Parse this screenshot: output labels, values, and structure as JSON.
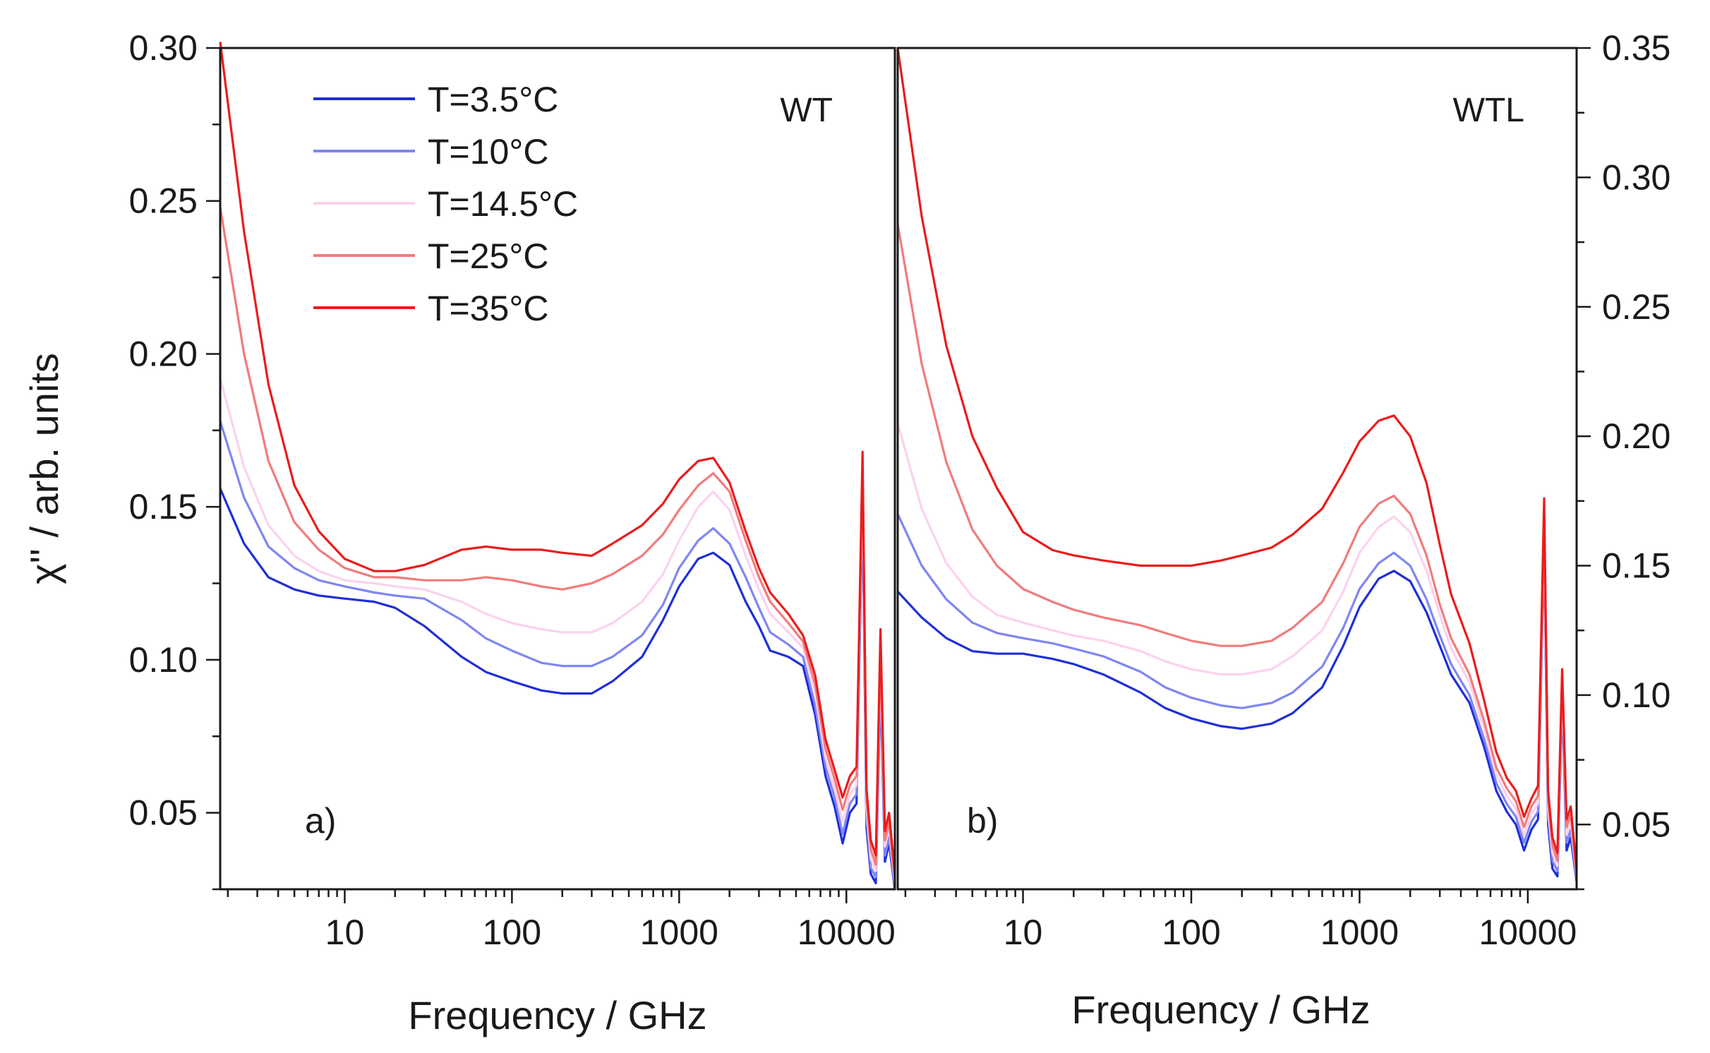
{
  "chart_data": [
    {
      "panel": "a",
      "type": "line",
      "x_scale": "log",
      "title": "",
      "sample_label": "WT",
      "panel_letter": "a)",
      "xlabel": "Frequency / GHz",
      "ylabel": "χ'' / arb. units",
      "xlim": [
        1.8,
        19500
      ],
      "ylim": [
        0.025,
        0.3
      ],
      "x_ticks": [
        10,
        100,
        1000,
        10000
      ],
      "x_tick_labels": [
        "10",
        "100",
        "1000",
        "10000"
      ],
      "y_ticks": [
        0.05,
        0.1,
        0.15,
        0.2,
        0.25,
        0.3
      ],
      "y_tick_labels": [
        "0.05",
        "0.10",
        "0.15",
        "0.20",
        "0.25",
        "0.30"
      ],
      "y_axis_side": "left",
      "legend": "top-left",
      "grid": false,
      "series": [
        {
          "name": "T=3.5°C",
          "color": "#1e2fd8",
          "x": [
            1.8,
            2.5,
            3.5,
            5,
            7,
            10,
            15,
            20,
            30,
            50,
            70,
            100,
            150,
            200,
            300,
            400,
            600,
            800,
            1000,
            1300,
            1600,
            2000,
            2500,
            3000,
            3500,
            4500,
            5500,
            6500,
            7500,
            8500,
            9500,
            10500,
            11500,
            12500,
            13200,
            14000,
            15000,
            16000,
            17000,
            18000,
            19500
          ],
          "y": [
            0.156,
            0.138,
            0.127,
            0.123,
            0.121,
            0.12,
            0.119,
            0.117,
            0.111,
            0.101,
            0.096,
            0.093,
            0.09,
            0.089,
            0.089,
            0.093,
            0.101,
            0.113,
            0.124,
            0.133,
            0.135,
            0.131,
            0.119,
            0.111,
            0.103,
            0.101,
            0.098,
            0.082,
            0.062,
            0.052,
            0.04,
            0.05,
            0.053,
            0.152,
            0.045,
            0.03,
            0.027,
            0.092,
            0.034,
            0.04,
            0.025
          ]
        },
        {
          "name": "T=10°C",
          "color": "#7f86f2",
          "x": [
            1.8,
            2.5,
            3.5,
            5,
            7,
            10,
            15,
            20,
            30,
            50,
            70,
            100,
            150,
            200,
            300,
            400,
            600,
            800,
            1000,
            1300,
            1600,
            2000,
            2500,
            3000,
            3500,
            4500,
            5500,
            6500,
            7500,
            8500,
            9500,
            10500,
            11500,
            12500,
            13200,
            14000,
            15000,
            16000,
            17000,
            18000,
            19500
          ],
          "y": [
            0.178,
            0.153,
            0.137,
            0.13,
            0.126,
            0.124,
            0.122,
            0.121,
            0.12,
            0.113,
            0.107,
            0.103,
            0.099,
            0.098,
            0.098,
            0.101,
            0.108,
            0.118,
            0.13,
            0.139,
            0.143,
            0.138,
            0.127,
            0.117,
            0.109,
            0.105,
            0.101,
            0.085,
            0.065,
            0.055,
            0.043,
            0.053,
            0.056,
            0.156,
            0.048,
            0.032,
            0.029,
            0.096,
            0.036,
            0.042,
            0.026
          ]
        },
        {
          "name": "T=14.5°C",
          "color": "#fbd2ee",
          "x": [
            1.8,
            2.5,
            3.5,
            5,
            7,
            10,
            15,
            20,
            30,
            50,
            70,
            100,
            150,
            200,
            300,
            400,
            600,
            800,
            1000,
            1300,
            1600,
            2000,
            2500,
            3000,
            3500,
            4500,
            5500,
            6500,
            7500,
            8500,
            9500,
            10500,
            11500,
            12500,
            13200,
            14000,
            15000,
            16000,
            17000,
            18000,
            19500
          ],
          "y": [
            0.192,
            0.163,
            0.144,
            0.134,
            0.129,
            0.126,
            0.125,
            0.124,
            0.123,
            0.119,
            0.115,
            0.112,
            0.11,
            0.109,
            0.109,
            0.112,
            0.119,
            0.128,
            0.139,
            0.15,
            0.155,
            0.149,
            0.134,
            0.123,
            0.115,
            0.109,
            0.104,
            0.089,
            0.068,
            0.058,
            0.047,
            0.056,
            0.059,
            0.16,
            0.052,
            0.035,
            0.031,
            0.1,
            0.039,
            0.045,
            0.027
          ]
        },
        {
          "name": "T=25°C",
          "color": "#f27b7b",
          "x": [
            1.8,
            2.5,
            3.5,
            5,
            7,
            10,
            15,
            20,
            30,
            50,
            70,
            100,
            150,
            200,
            300,
            400,
            600,
            800,
            1000,
            1300,
            1600,
            2000,
            2500,
            3000,
            3500,
            4500,
            5500,
            6500,
            7500,
            8500,
            9500,
            10500,
            11500,
            12500,
            13200,
            14000,
            15000,
            16000,
            17000,
            18000,
            19500
          ],
          "y": [
            0.248,
            0.2,
            0.165,
            0.145,
            0.136,
            0.13,
            0.127,
            0.127,
            0.126,
            0.126,
            0.127,
            0.126,
            0.124,
            0.123,
            0.125,
            0.128,
            0.134,
            0.141,
            0.149,
            0.157,
            0.161,
            0.155,
            0.139,
            0.127,
            0.119,
            0.112,
            0.106,
            0.092,
            0.071,
            0.061,
            0.051,
            0.059,
            0.062,
            0.164,
            0.055,
            0.038,
            0.033,
            0.104,
            0.041,
            0.047,
            0.028
          ]
        },
        {
          "name": "T=35°C",
          "color": "#ea1c1c",
          "x": [
            1.8,
            2.5,
            3.5,
            5,
            7,
            10,
            15,
            20,
            30,
            50,
            70,
            100,
            150,
            200,
            300,
            400,
            600,
            800,
            1000,
            1300,
            1600,
            2000,
            2500,
            3000,
            3500,
            4500,
            5500,
            6500,
            7500,
            8500,
            9500,
            10500,
            11500,
            12500,
            13200,
            14000,
            15000,
            16000,
            17000,
            18000,
            19500
          ],
          "y": [
            0.302,
            0.24,
            0.19,
            0.157,
            0.142,
            0.133,
            0.129,
            0.129,
            0.131,
            0.136,
            0.137,
            0.136,
            0.136,
            0.135,
            0.134,
            0.138,
            0.144,
            0.151,
            0.159,
            0.165,
            0.166,
            0.158,
            0.142,
            0.13,
            0.122,
            0.115,
            0.108,
            0.095,
            0.074,
            0.064,
            0.055,
            0.062,
            0.065,
            0.168,
            0.058,
            0.041,
            0.036,
            0.11,
            0.044,
            0.05,
            0.03
          ]
        }
      ]
    },
    {
      "panel": "b",
      "type": "line",
      "x_scale": "log",
      "title": "",
      "sample_label": "WTL",
      "panel_letter": "b)",
      "xlabel": "Frequency / GHz",
      "ylabel": "",
      "xlim": [
        1.8,
        19500
      ],
      "ylim": [
        0.025,
        0.35
      ],
      "x_ticks": [
        10,
        100,
        1000,
        10000
      ],
      "x_tick_labels": [
        "10",
        "100",
        "1000",
        "10000"
      ],
      "y_ticks": [
        0.05,
        0.1,
        0.15,
        0.2,
        0.25,
        0.3,
        0.35
      ],
      "y_tick_labels": [
        "0.05",
        "0.10",
        "0.15",
        "0.20",
        "0.25",
        "0.30",
        "0.35"
      ],
      "y_axis_side": "right",
      "grid": false,
      "series": [
        {
          "name": "T=3.5°C",
          "color": "#1e2fd8",
          "x": [
            1.8,
            2.5,
            3.5,
            5,
            7,
            10,
            15,
            20,
            30,
            50,
            70,
            100,
            150,
            200,
            300,
            400,
            600,
            800,
            1000,
            1300,
            1600,
            2000,
            2500,
            3000,
            3500,
            4500,
            5500,
            6500,
            7500,
            8500,
            9500,
            10500,
            11500,
            12500,
            13200,
            14000,
            15000,
            16000,
            17000,
            18000,
            19500
          ],
          "y": [
            0.14,
            0.13,
            0.122,
            0.117,
            0.116,
            0.116,
            0.114,
            0.112,
            0.108,
            0.101,
            0.095,
            0.091,
            0.088,
            0.087,
            0.089,
            0.093,
            0.103,
            0.119,
            0.134,
            0.145,
            0.148,
            0.144,
            0.132,
            0.119,
            0.108,
            0.097,
            0.08,
            0.063,
            0.055,
            0.05,
            0.04,
            0.048,
            0.052,
            0.16,
            0.05,
            0.033,
            0.03,
            0.098,
            0.04,
            0.045,
            0.028
          ]
        },
        {
          "name": "T=10°C",
          "color": "#7f86f2",
          "x": [
            1.8,
            2.5,
            3.5,
            5,
            7,
            10,
            15,
            20,
            30,
            50,
            70,
            100,
            150,
            200,
            300,
            400,
            600,
            800,
            1000,
            1300,
            1600,
            2000,
            2500,
            3000,
            3500,
            4500,
            5500,
            6500,
            7500,
            8500,
            9500,
            10500,
            11500,
            12500,
            13200,
            14000,
            15000,
            16000,
            17000,
            18000,
            19500
          ],
          "y": [
            0.17,
            0.15,
            0.137,
            0.128,
            0.124,
            0.122,
            0.12,
            0.118,
            0.115,
            0.109,
            0.103,
            0.099,
            0.096,
            0.095,
            0.097,
            0.101,
            0.111,
            0.126,
            0.141,
            0.151,
            0.155,
            0.15,
            0.137,
            0.123,
            0.112,
            0.1,
            0.083,
            0.066,
            0.058,
            0.053,
            0.043,
            0.051,
            0.055,
            0.163,
            0.053,
            0.036,
            0.032,
            0.101,
            0.043,
            0.048,
            0.029
          ]
        },
        {
          "name": "T=14.5°C",
          "color": "#fbd2ee",
          "x": [
            1.8,
            2.5,
            3.5,
            5,
            7,
            10,
            15,
            20,
            30,
            50,
            70,
            100,
            150,
            200,
            300,
            400,
            600,
            800,
            1000,
            1300,
            1600,
            2000,
            2500,
            3000,
            3500,
            4500,
            5500,
            6500,
            7500,
            8500,
            9500,
            10500,
            11500,
            12500,
            13200,
            14000,
            15000,
            16000,
            17000,
            18000,
            19500
          ],
          "y": [
            0.205,
            0.172,
            0.151,
            0.138,
            0.131,
            0.128,
            0.125,
            0.123,
            0.121,
            0.117,
            0.113,
            0.11,
            0.108,
            0.108,
            0.11,
            0.115,
            0.125,
            0.14,
            0.155,
            0.165,
            0.169,
            0.163,
            0.148,
            0.131,
            0.118,
            0.105,
            0.087,
            0.069,
            0.061,
            0.056,
            0.046,
            0.054,
            0.058,
            0.166,
            0.056,
            0.039,
            0.034,
            0.104,
            0.046,
            0.051,
            0.03
          ]
        },
        {
          "name": "T=25°C",
          "color": "#f27b7b",
          "x": [
            1.8,
            2.5,
            3.5,
            5,
            7,
            10,
            15,
            20,
            30,
            50,
            70,
            100,
            150,
            200,
            300,
            400,
            600,
            800,
            1000,
            1300,
            1600,
            2000,
            2500,
            3000,
            3500,
            4500,
            5500,
            6500,
            7500,
            8500,
            9500,
            10500,
            11500,
            12500,
            13200,
            14000,
            15000,
            16000,
            17000,
            18000,
            19500
          ],
          "y": [
            0.282,
            0.228,
            0.19,
            0.164,
            0.15,
            0.141,
            0.136,
            0.133,
            0.13,
            0.127,
            0.124,
            0.121,
            0.119,
            0.119,
            0.121,
            0.126,
            0.136,
            0.151,
            0.165,
            0.174,
            0.177,
            0.17,
            0.154,
            0.135,
            0.122,
            0.108,
            0.09,
            0.072,
            0.064,
            0.059,
            0.049,
            0.057,
            0.061,
            0.169,
            0.059,
            0.042,
            0.036,
            0.107,
            0.049,
            0.054,
            0.031
          ]
        },
        {
          "name": "T=35°C",
          "color": "#ea1c1c",
          "x": [
            1.8,
            2.5,
            3.5,
            5,
            7,
            10,
            15,
            20,
            30,
            50,
            70,
            100,
            150,
            200,
            300,
            400,
            600,
            800,
            1000,
            1300,
            1600,
            2000,
            2500,
            3000,
            3500,
            4500,
            5500,
            6500,
            7500,
            8500,
            9500,
            10500,
            11500,
            12500,
            13200,
            14000,
            15000,
            16000,
            17000,
            18000,
            19500
          ],
          "y": [
            0.35,
            0.285,
            0.235,
            0.2,
            0.18,
            0.163,
            0.156,
            0.154,
            0.152,
            0.15,
            0.15,
            0.15,
            0.152,
            0.154,
            0.157,
            0.162,
            0.172,
            0.186,
            0.198,
            0.206,
            0.208,
            0.2,
            0.182,
            0.158,
            0.139,
            0.12,
            0.098,
            0.078,
            0.068,
            0.063,
            0.053,
            0.06,
            0.065,
            0.176,
            0.063,
            0.045,
            0.039,
            0.11,
            0.052,
            0.057,
            0.032
          ]
        }
      ]
    }
  ]
}
